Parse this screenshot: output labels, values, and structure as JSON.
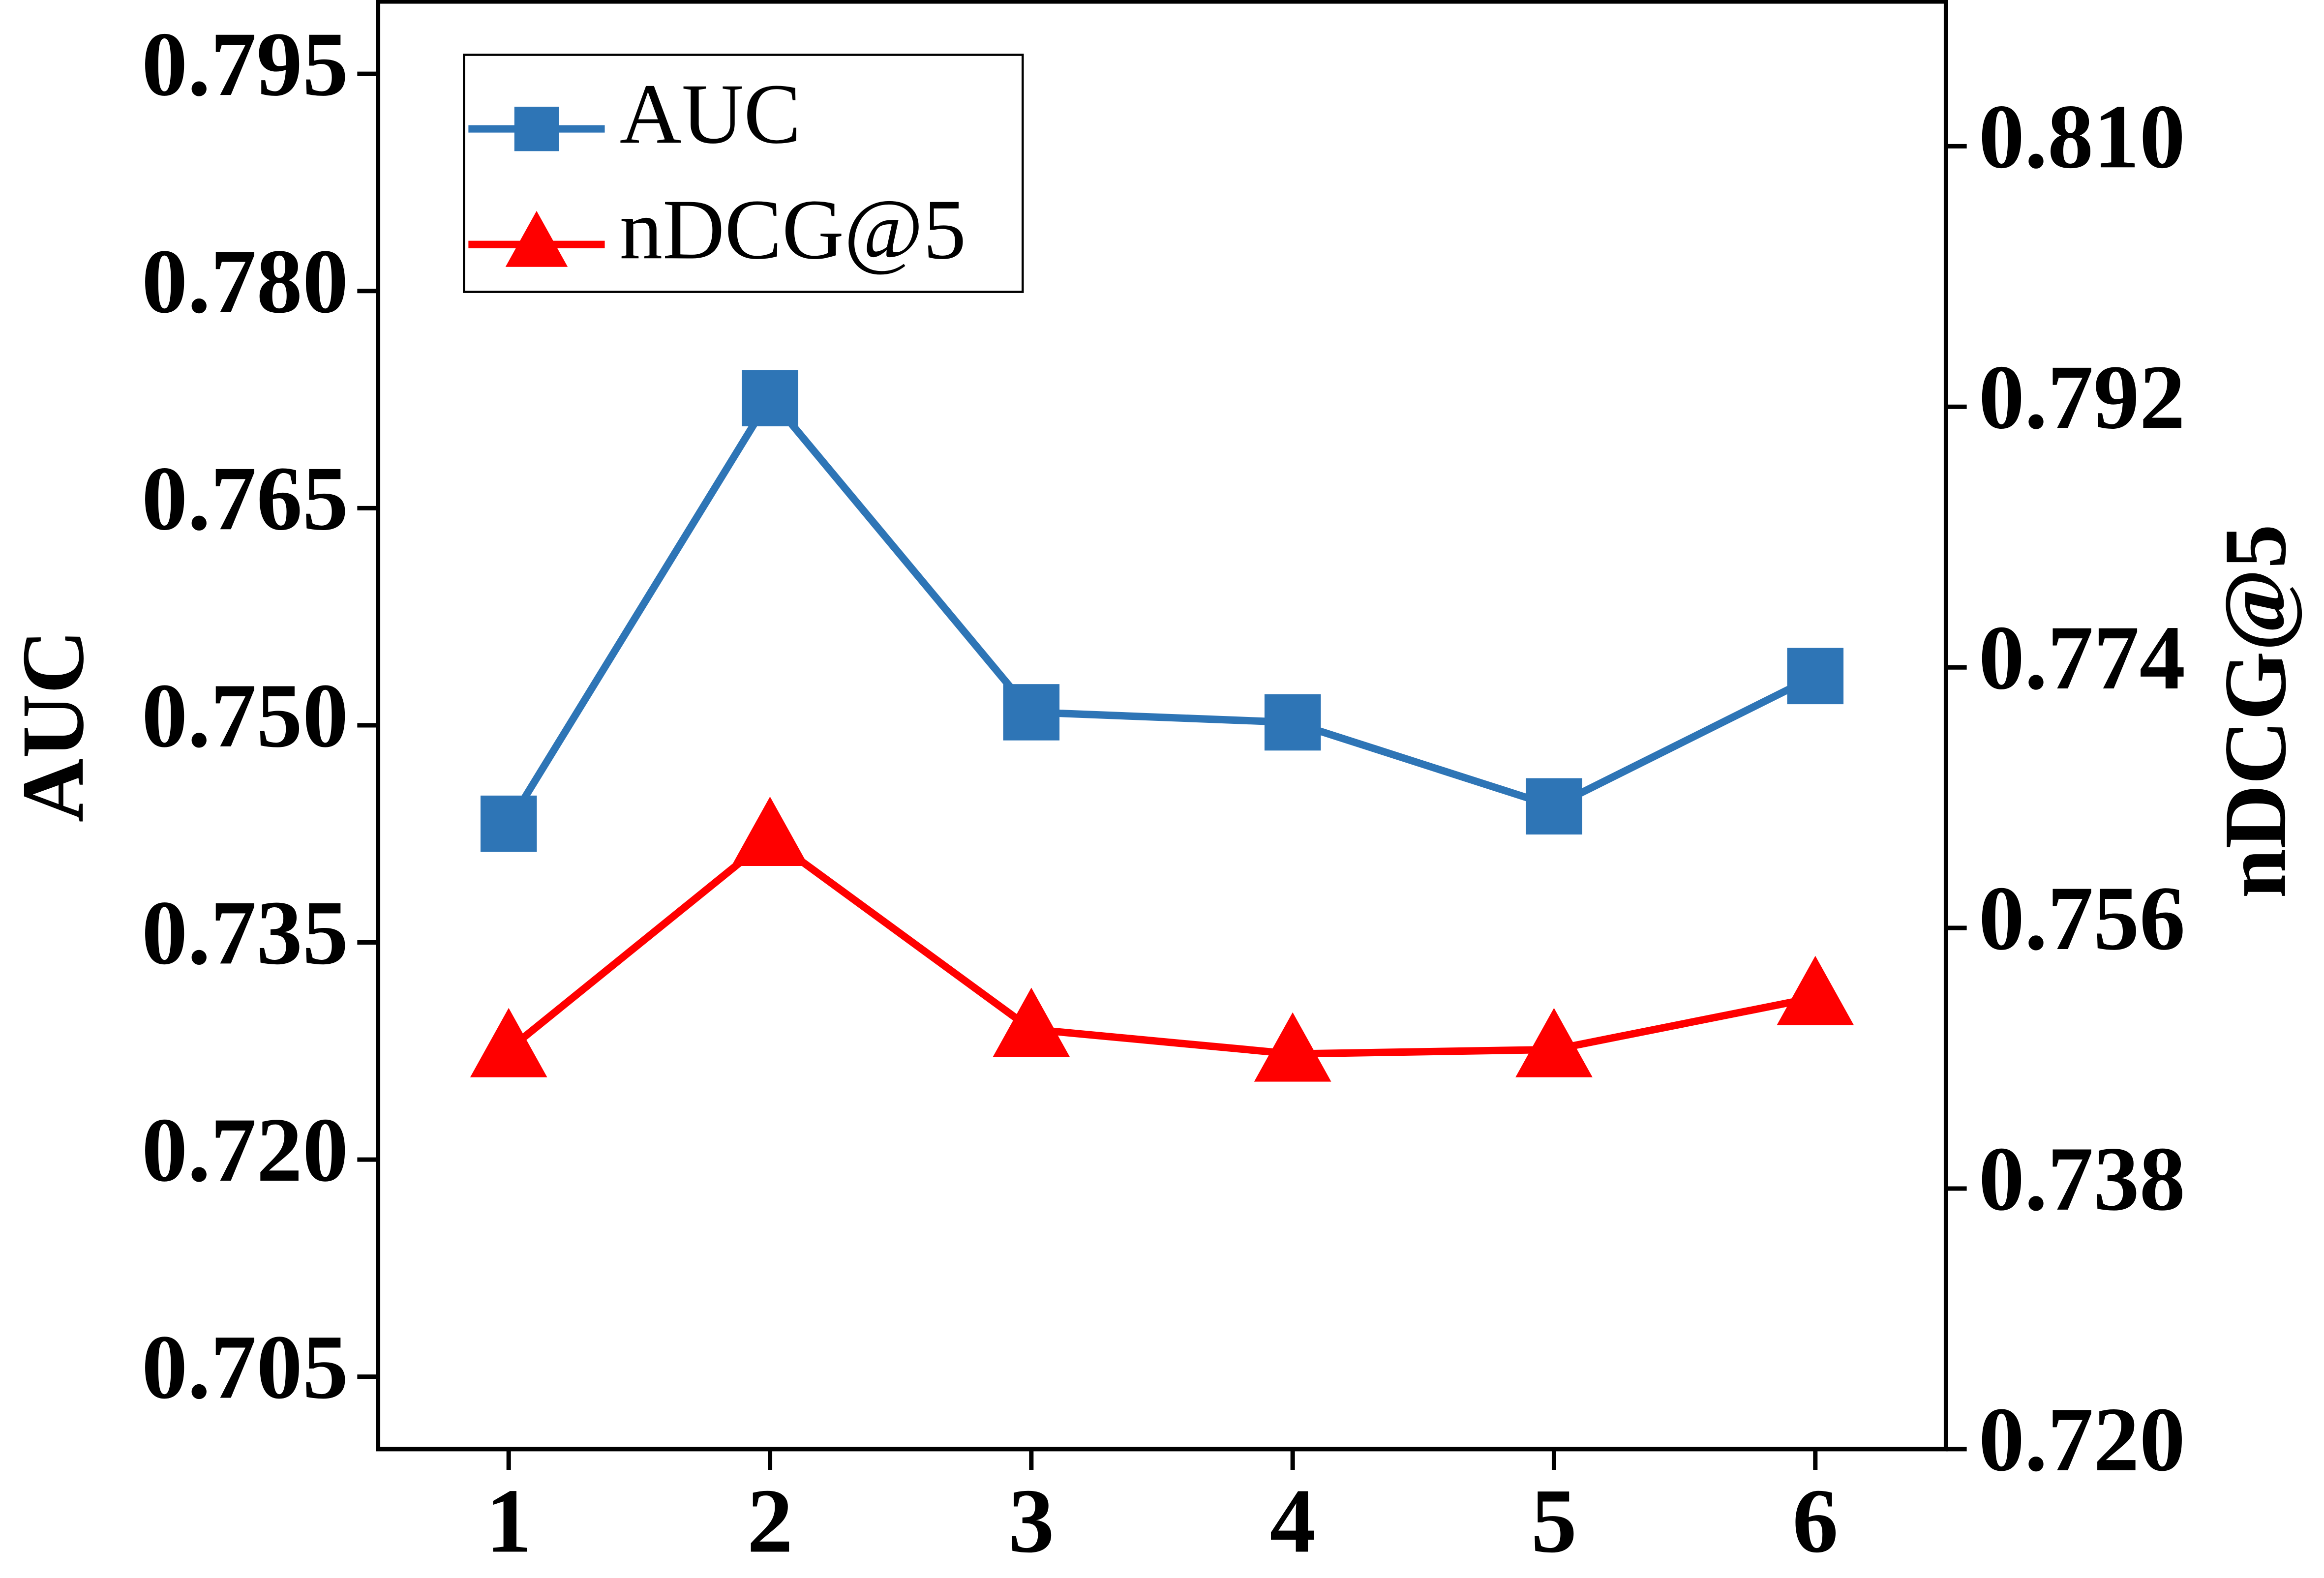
{
  "chart_data": {
    "type": "line",
    "categories": [
      "1",
      "2",
      "3",
      "4",
      "5",
      "6"
    ],
    "x": [
      1,
      2,
      3,
      4,
      5,
      6
    ],
    "xlim": [
      0.5,
      6.5
    ],
    "xticks": [
      1,
      2,
      3,
      4,
      5,
      6
    ],
    "ylabel": "AUC",
    "y2label": "nDCG@5",
    "ylim": [
      0.7,
      0.8
    ],
    "yticks": [
      {
        "value": 0.705,
        "label": "0.705"
      },
      {
        "value": 0.72,
        "label": "0.720"
      },
      {
        "value": 0.735,
        "label": "0.735"
      },
      {
        "value": 0.75,
        "label": "0.750"
      },
      {
        "value": 0.765,
        "label": "0.765"
      },
      {
        "value": 0.78,
        "label": "0.780"
      },
      {
        "value": 0.795,
        "label": "0.795"
      }
    ],
    "y2lim": [
      0.72,
      0.82
    ],
    "y2ticks": [
      {
        "value": 0.72,
        "label": "0.720"
      },
      0.738,
      0.756,
      0.774,
      0.792,
      {
        "value": 0.81,
        "label": "0.810"
      }
    ],
    "legend": "upper left",
    "series": [
      {
        "name": "AUC",
        "color": "#2e75b6",
        "marker": "square",
        "values": [
          0.7432,
          0.7726,
          0.7509,
          0.7502,
          0.7444,
          0.7534
        ]
      },
      {
        "name": "nDCG@5",
        "color": "#ff0000",
        "marker": "triangle",
        "axis": "y2",
        "values": [
          0.7476,
          0.7622,
          0.749,
          0.7473,
          0.7476,
          0.7512
        ]
      }
    ]
  }
}
